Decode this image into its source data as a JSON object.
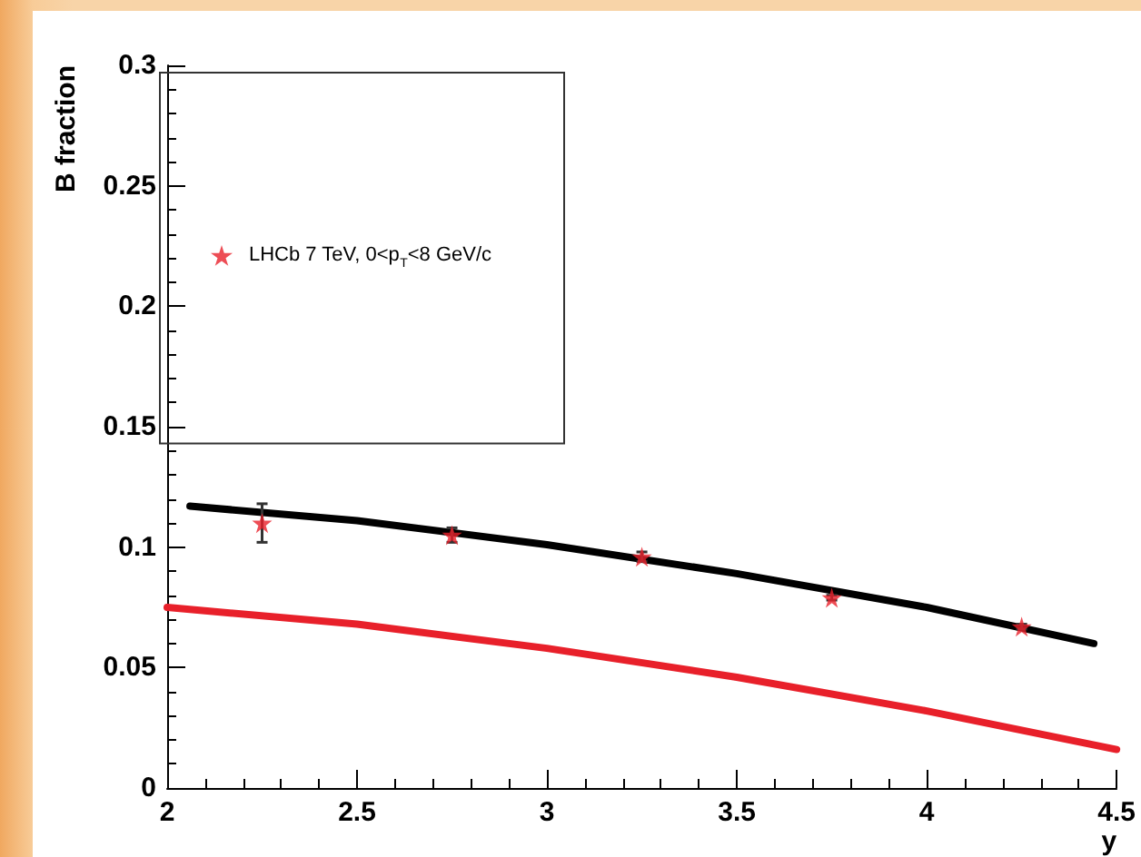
{
  "chart_data": {
    "type": "scatter",
    "xlabel": "y",
    "ylabel": "B fraction",
    "xlim": [
      2,
      4.5
    ],
    "xticks": [
      2,
      2.5,
      3,
      3.5,
      4,
      4.5
    ],
    "ylim": [
      0,
      0.3
    ],
    "yticks": [
      0,
      0.05,
      0.1,
      0.15,
      0.2,
      0.25,
      0.3
    ],
    "grid": false,
    "legend": "top left",
    "series": [
      {
        "name": "LHCb 7 TeV, 0<p$_{T}$<8 GeV/c",
        "color": "#e8202a",
        "marker": "star",
        "x": [
          2.25,
          2.75,
          3.25,
          3.75,
          4.25
        ],
        "values": [
          0.11,
          0.105,
          0.096,
          0.079,
          0.067
        ],
        "errors": [
          0.008,
          0.003,
          0.002,
          0.001,
          0.001
        ]
      },
      {
        "type": "line",
        "color": "#000000",
        "marker": "none",
        "line_style": "solid",
        "x": [
          2.06,
          2.5,
          3.0,
          3.5,
          4.0,
          4.44
        ],
        "values": [
          0.117,
          0.111,
          0.101,
          0.089,
          0.075,
          0.06
        ]
      },
      {
        "type": "line",
        "color": "#e8202a",
        "marker": "none",
        "line_style": "solid",
        "x": [
          2.0,
          2.5,
          3.0,
          3.5,
          4.0,
          4.5
        ],
        "values": [
          0.075,
          0.068,
          0.058,
          0.046,
          0.032,
          0.016
        ]
      }
    ]
  }
}
